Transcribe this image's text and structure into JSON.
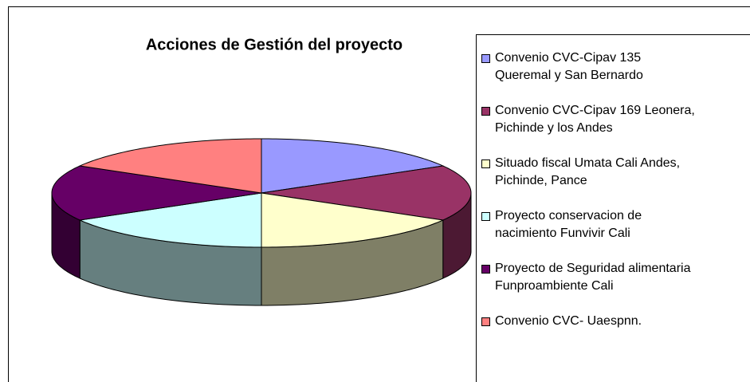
{
  "chart_data": {
    "type": "pie",
    "title": "Acciones de Gestión del proyecto",
    "categories": [
      "Convenio CVC-Cipav 135\nQueremal y San Bernardo",
      "Convenio CVC-Cipav 169 Leonera,\nPichinde y los Andes",
      "Situado fiscal Umata Cali Andes,\nPichinde, Pance",
      "Proyecto conservacion de\nnacimiento Funvivir Cali",
      "Proyecto de Seguridad alimentaria\nFunproambiente Cali",
      "Convenio CVC- Uaespnn."
    ],
    "values": [
      1,
      1,
      1,
      1,
      1,
      1
    ],
    "colors": [
      "#9999ff",
      "#993366",
      "#ffffcc",
      "#ccffff",
      "#660066",
      "#ff8080"
    ],
    "legend": "right"
  }
}
